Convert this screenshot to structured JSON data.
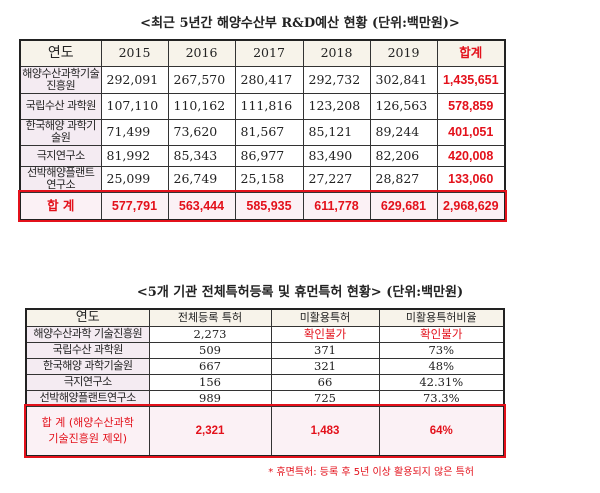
{
  "table1": {
    "title": "<최근 5년간 해양수산부 R&D예산 현황 (단위:백만원)>",
    "headers": [
      "연도",
      "2015",
      "2016",
      "2017",
      "2018",
      "2019",
      "합계"
    ],
    "rows": [
      {
        "name": "해양수산과학기술 진흥원",
        "values": [
          "292,091",
          "267,570",
          "280,417",
          "292,732",
          "302,841"
        ],
        "total": "1,435,651"
      },
      {
        "name": "국립수산 과학원",
        "values": [
          "107,110",
          "110,162",
          "111,816",
          "123,208",
          "126,563"
        ],
        "total": "578,859"
      },
      {
        "name": "한국해양 과학기술원",
        "values": [
          "71,499",
          "73,620",
          "81,567",
          "85,121",
          "89,244"
        ],
        "total": "401,051"
      },
      {
        "name": "극지연구소",
        "values": [
          "81,992",
          "85,343",
          "86,977",
          "83,490",
          "82,206"
        ],
        "total": "420,008"
      },
      {
        "name": "선박해양플랜트 연구소",
        "values": [
          "25,099",
          "26,749",
          "25,158",
          "27,227",
          "28,827"
        ],
        "total": "133,060"
      }
    ],
    "total_row": {
      "label": "합 계",
      "values": [
        "577,791",
        "563,444",
        "585,935",
        "611,778",
        "629,681"
      ],
      "total": "2,968,629"
    }
  },
  "table2": {
    "title": "<5개 기관 전체특허등록 및 휴먼특허 현황> (단위:백만원)",
    "headers": [
      "연도",
      "전체등록 특허",
      "미활용특허",
      "미활용특허비율"
    ],
    "rows": [
      [
        "해양수산과학 기술진흥원",
        "2,273",
        "확인불가",
        "확인불가"
      ],
      [
        "국립수산 과학원",
        "509",
        "371",
        "73%"
      ],
      [
        "한국해양 과학기술원",
        "667",
        "321",
        "48%"
      ],
      [
        "극지연구소",
        "156",
        "66",
        "42.31%"
      ],
      [
        "선박해양플랜트연구소",
        "989",
        "725",
        "73.3%"
      ]
    ],
    "total_row": [
      "합 계 (해양수산과학 기술진흥원 제외)",
      "2,321",
      "1,483",
      "64%"
    ]
  },
  "footnote": "* 휴면특허: 등록 후 5년 이상 활용되지 않은 특허",
  "colors": {
    "accent_red": "#e3111b",
    "header_bg": "#f7f3ea",
    "first_col_bg": "#f4ebf2"
  }
}
